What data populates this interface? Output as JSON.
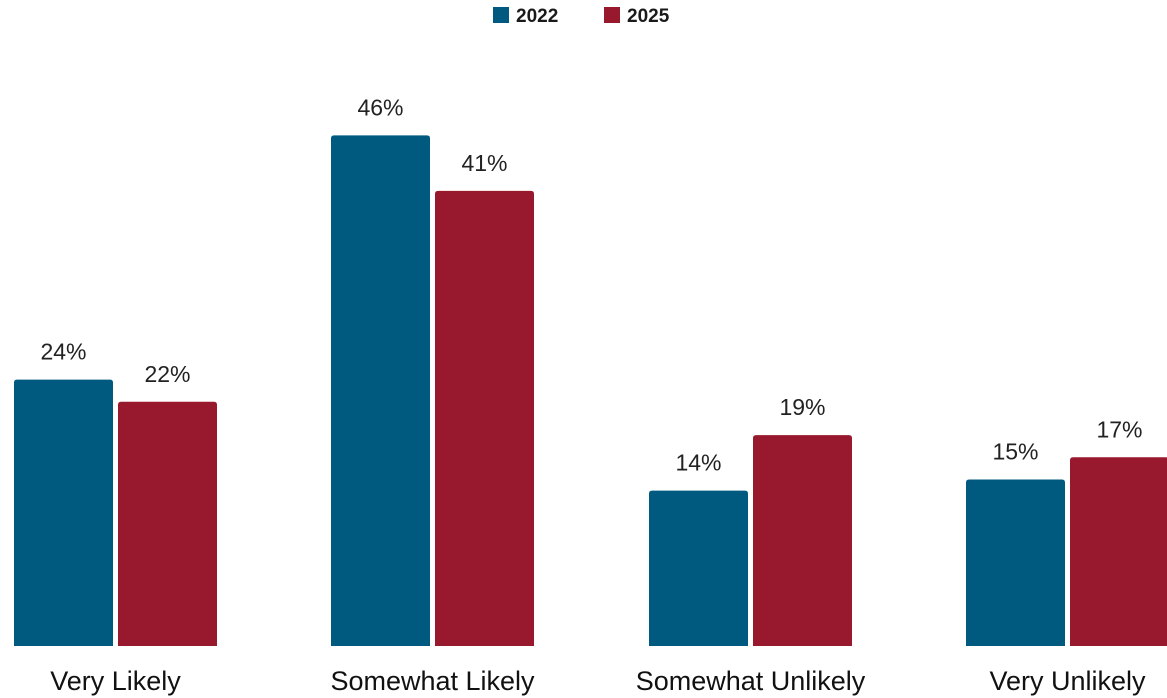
{
  "chart_data": {
    "type": "bar",
    "categories": [
      "Very Likely",
      "Somewhat Likely",
      "Somewhat Unlikely",
      "Very Unlikely"
    ],
    "series": [
      {
        "name": "2022",
        "color": "#005a80",
        "values": [
          24,
          46,
          14,
          15
        ]
      },
      {
        "name": "2025",
        "color": "#98182d",
        "values": [
          22,
          41,
          19,
          17
        ]
      }
    ],
    "value_suffix": "%",
    "legend_position": "top-center",
    "grid": false,
    "ylim": [
      0,
      46
    ]
  }
}
